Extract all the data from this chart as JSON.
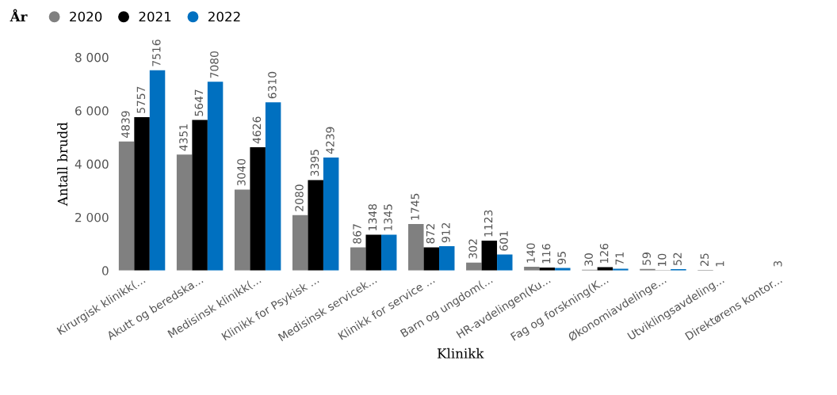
{
  "chart_data": {
    "type": "bar",
    "xlabel": "Klinikk",
    "ylabel": "Antall brudd",
    "legend_title": "År",
    "legend": "top left",
    "grid": false,
    "data_labels": true,
    "categories": [
      "Kirurgisk klinikk(...",
      "Akutt og beredska...",
      "Medisinsk klinikk(...",
      "Klinikk for Psykisk ...",
      "Medisinsk servicek...",
      "Klinikk for service ...",
      "Barn og ungdom(...",
      "HR-avdelingen(Ku...",
      "Fag og forskning(K...",
      "Økonomiavdelinge...",
      "Utviklingsavdeling...",
      "Direktørens kontor..."
    ],
    "ylim": [
      0,
      8000
    ],
    "yticks": [
      {
        "value": 0,
        "label": "0"
      },
      {
        "value": 2000,
        "label": "2 000"
      },
      {
        "value": 4000,
        "label": "4 000"
      },
      {
        "value": 6000,
        "label": "6 000"
      },
      {
        "value": 8000,
        "label": "8 000"
      }
    ],
    "series": [
      {
        "name": "2020",
        "color": "#808080",
        "values": [
          4839,
          4351,
          3040,
          2080,
          867,
          1745,
          302,
          140,
          30,
          59,
          25,
          null
        ]
      },
      {
        "name": "2021",
        "color": "#000000",
        "values": [
          5757,
          5647,
          4626,
          3395,
          1348,
          872,
          1123,
          116,
          126,
          10,
          1,
          3
        ]
      },
      {
        "name": "2022",
        "color": "#0070c0",
        "values": [
          7516,
          7080,
          6310,
          4239,
          1345,
          912,
          601,
          95,
          71,
          52,
          null,
          null
        ]
      }
    ]
  }
}
